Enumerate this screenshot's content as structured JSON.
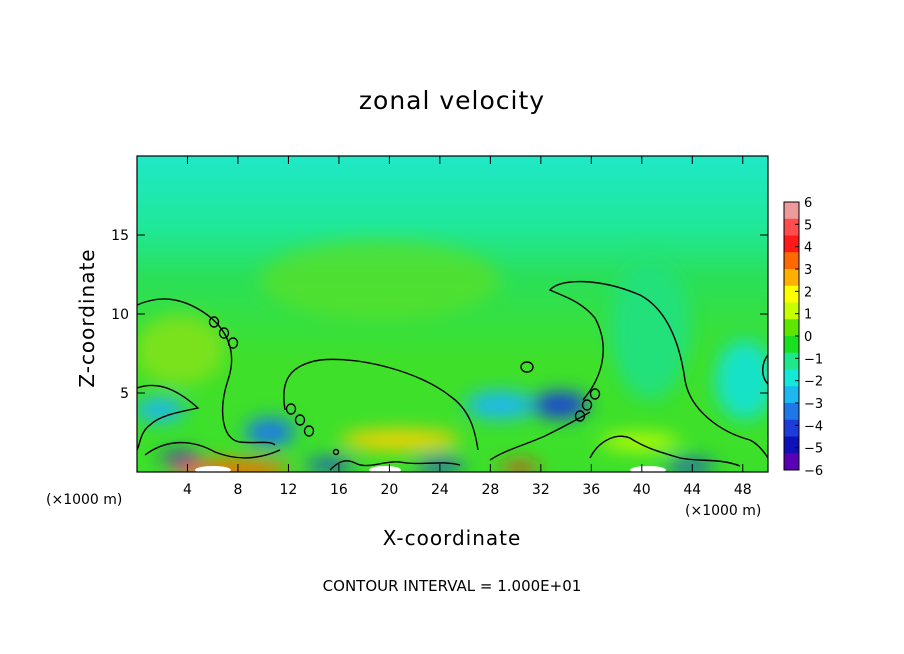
{
  "chart_data": {
    "type": "heatmap",
    "title": "zonal velocity",
    "xlabel": "X-coordinate",
    "ylabel": "Z-coordinate",
    "x_unit_label": "(×1000 m)",
    "x_unit_label_right": "(×1000 m)",
    "footnote": "CONTOUR INTERVAL = 1.000E+01",
    "xlim": [
      0,
      50
    ],
    "ylim": [
      0,
      20
    ],
    "x_ticks": [
      4,
      8,
      12,
      16,
      20,
      24,
      28,
      32,
      36,
      40,
      44,
      48
    ],
    "y_ticks": [
      5,
      10,
      15
    ],
    "colorbar": {
      "ticks": [
        6,
        5,
        4,
        3,
        2,
        1,
        0,
        -1,
        -2,
        -3,
        -4,
        -5,
        -6
      ],
      "tick_labels": [
        "6",
        "5",
        "4",
        "3",
        "2",
        "1",
        "0",
        "−1",
        "−2",
        "−3",
        "−4",
        "−5",
        "−6"
      ],
      "range": [
        -6,
        6
      ],
      "colors": [
        "#ef9a9a",
        "#ff4d4d",
        "#ff1a1a",
        "#ff6a00",
        "#ffb000",
        "#ffff00",
        "#c8ff00",
        "#5ee600",
        "#19e020",
        "#1ee88a",
        "#14e8d8",
        "#1eb8f0",
        "#1e78e8",
        "#1e3cd8",
        "#1010b8",
        "#5a00b4"
      ]
    },
    "field_features": [
      {
        "x": 50,
        "y": 20,
        "value": -1.2,
        "note": "upper domain"
      },
      {
        "x": 25,
        "y": 8,
        "value": 0.3
      },
      {
        "x": 5,
        "y": 7.5,
        "value": 0.6
      },
      {
        "x": 12.5,
        "y": 2.5,
        "value": -3
      },
      {
        "x": 34,
        "y": 4,
        "value": -4.5
      },
      {
        "x": 48,
        "y": 5,
        "value": -1.8
      },
      {
        "x": 20,
        "y": 1.5,
        "value": 2.5
      },
      {
        "x": 40,
        "y": 1.5,
        "value": 2
      }
    ]
  },
  "colors": {
    "background": "#ffffff",
    "frame": "#000000",
    "contour": "#000000"
  }
}
